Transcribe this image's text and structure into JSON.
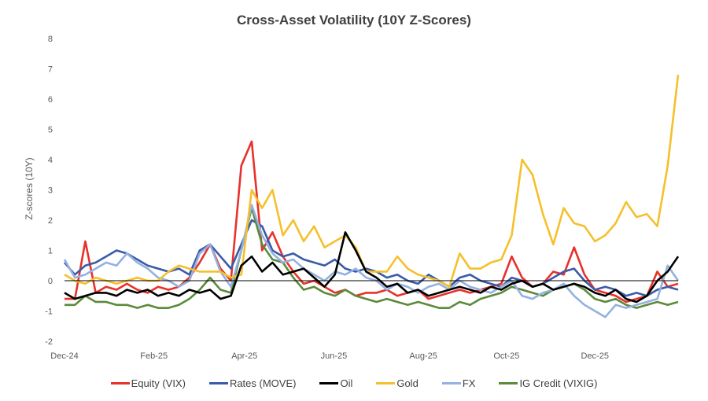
{
  "chart_data": {
    "type": "line",
    "title": "Cross-Asset Volatility (10Y Z-Scores)",
    "xlabel": "",
    "ylabel": "Z-scores (10Y)",
    "ylim": [
      -2,
      8
    ],
    "yticks": [
      8,
      7,
      6,
      5,
      4,
      3,
      2,
      1,
      0,
      -1,
      -2
    ],
    "x_unit": "weeks since Dec-24",
    "xlim": [
      0,
      59
    ],
    "xticks": [
      {
        "x": 0,
        "label": "Dec-24"
      },
      {
        "x": 8.6,
        "label": "Feb-25"
      },
      {
        "x": 17.3,
        "label": "Apr-25"
      },
      {
        "x": 25.9,
        "label": "Jun-25"
      },
      {
        "x": 34.5,
        "label": "Aug-25"
      },
      {
        "x": 42.5,
        "label": "Oct-25"
      },
      {
        "x": 51,
        "label": "Dec-25"
      }
    ],
    "zero_line": true,
    "grid": false,
    "legend_position": "bottom",
    "series": [
      {
        "name": "Equity (VIX)",
        "color": "#e8312a",
        "values": [
          -0.6,
          -0.6,
          1.3,
          -0.4,
          -0.2,
          -0.3,
          -0.1,
          -0.3,
          -0.4,
          -0.2,
          -0.3,
          -0.2,
          0.1,
          0.6,
          1.2,
          0.4,
          0,
          3.8,
          4.6,
          1.0,
          1.6,
          0.8,
          0.3,
          -0.1,
          0,
          -0.2,
          -0.4,
          -0.3,
          -0.5,
          -0.4,
          -0.4,
          -0.3,
          -0.5,
          -0.4,
          -0.3,
          -0.6,
          -0.5,
          -0.4,
          -0.3,
          -0.4,
          -0.3,
          -0.2,
          -0.1,
          0.8,
          0.1,
          -0.2,
          -0.1,
          0.3,
          0.2,
          1.1,
          0.2,
          -0.3,
          -0.4,
          -0.5,
          -0.7,
          -0.6,
          -0.5,
          0.3,
          -0.2,
          -0.1
        ]
      },
      {
        "name": "Rates (MOVE)",
        "color": "#3a5ba8",
        "values": [
          0.6,
          0.2,
          0.5,
          0.6,
          0.8,
          1.0,
          0.9,
          0.7,
          0.5,
          0.4,
          0.3,
          0.4,
          0.2,
          1.0,
          1.2,
          0.8,
          0.4,
          1.2,
          2.0,
          1.8,
          1.0,
          0.8,
          0.9,
          0.7,
          0.6,
          0.5,
          0.7,
          0.4,
          0.3,
          0.4,
          0.3,
          0.1,
          0.2,
          0,
          -0.1,
          0.2,
          0,
          -0.2,
          0.1,
          0.2,
          0,
          -0.1,
          -0.2,
          0.1,
          0,
          -0.2,
          -0.1,
          0.1,
          0.3,
          0.4,
          0,
          -0.3,
          -0.2,
          -0.3,
          -0.5,
          -0.4,
          -0.5,
          -0.3,
          -0.2,
          -0.3
        ]
      },
      {
        "name": "Oil",
        "color": "#000000",
        "values": [
          -0.4,
          -0.6,
          -0.5,
          -0.4,
          -0.4,
          -0.5,
          -0.3,
          -0.4,
          -0.3,
          -0.5,
          -0.4,
          -0.5,
          -0.3,
          -0.4,
          -0.3,
          -0.6,
          -0.5,
          0.5,
          0.8,
          0.3,
          0.6,
          0.2,
          0.3,
          0.4,
          0.1,
          -0.2,
          0.2,
          1.6,
          1.0,
          0.3,
          0.1,
          -0.2,
          -0.1,
          -0.4,
          -0.3,
          -0.5,
          -0.4,
          -0.3,
          -0.2,
          -0.3,
          -0.4,
          -0.2,
          -0.3,
          -0.1,
          0,
          -0.2,
          -0.1,
          -0.3,
          -0.2,
          -0.1,
          -0.2,
          -0.4,
          -0.5,
          -0.3,
          -0.6,
          -0.7,
          -0.5,
          0,
          0.3,
          0.8
        ]
      },
      {
        "name": "Gold",
        "color": "#f5c02c",
        "values": [
          0.2,
          0,
          -0.1,
          0.1,
          0,
          -0.1,
          0,
          0.1,
          0,
          0,
          0.3,
          0.5,
          0.4,
          0.3,
          0.3,
          0.3,
          0.1,
          0.2,
          3.0,
          2.4,
          3.0,
          1.5,
          2.0,
          1.3,
          1.8,
          1.1,
          1.3,
          1.5,
          1.1,
          0.3,
          0.3,
          0.3,
          0.8,
          0.4,
          0.2,
          0.1,
          0,
          -0.2,
          0.9,
          0.4,
          0.4,
          0.6,
          0.7,
          1.5,
          4.0,
          3.5,
          2.2,
          1.2,
          2.4,
          1.9,
          1.8,
          1.3,
          1.5,
          1.9,
          2.6,
          2.1,
          2.2,
          1.8,
          3.8,
          6.8
        ]
      },
      {
        "name": "FX",
        "color": "#94b1e0",
        "values": [
          0.7,
          0.1,
          0.2,
          0.4,
          0.6,
          0.5,
          0.9,
          0.6,
          0.4,
          0.1,
          0,
          -0.2,
          0,
          0.9,
          1.2,
          0.3,
          -0.2,
          1.0,
          2.5,
          1.5,
          0.9,
          0.6,
          0.7,
          0.4,
          0.2,
          0,
          0.3,
          0.2,
          0.4,
          0.1,
          0,
          -0.3,
          -0.1,
          -0.2,
          -0.4,
          -0.2,
          -0.1,
          -0.3,
          0,
          -0.2,
          -0.3,
          -0.4,
          -0.2,
          0,
          -0.5,
          -0.6,
          -0.4,
          -0.3,
          -0.1,
          -0.5,
          -0.8,
          -1.0,
          -1.2,
          -0.8,
          -0.9,
          -0.8,
          -0.7,
          -0.6,
          0.5,
          0
        ]
      },
      {
        "name": "IG Credit (VIXIG)",
        "color": "#5b8a3a",
        "values": [
          -0.8,
          -0.8,
          -0.5,
          -0.7,
          -0.7,
          -0.8,
          -0.8,
          -0.9,
          -0.8,
          -0.9,
          -0.9,
          -0.8,
          -0.6,
          -0.3,
          0.1,
          -0.3,
          -0.4,
          1.0,
          2.4,
          1.2,
          0.7,
          0.6,
          0.1,
          -0.3,
          -0.2,
          -0.4,
          -0.5,
          -0.3,
          -0.5,
          -0.6,
          -0.7,
          -0.6,
          -0.7,
          -0.8,
          -0.7,
          -0.8,
          -0.9,
          -0.9,
          -0.7,
          -0.8,
          -0.6,
          -0.5,
          -0.4,
          -0.2,
          -0.3,
          -0.4,
          -0.5,
          -0.3,
          -0.2,
          -0.1,
          -0.3,
          -0.6,
          -0.7,
          -0.6,
          -0.8,
          -0.9,
          -0.8,
          -0.7,
          -0.8,
          -0.7
        ]
      }
    ]
  }
}
